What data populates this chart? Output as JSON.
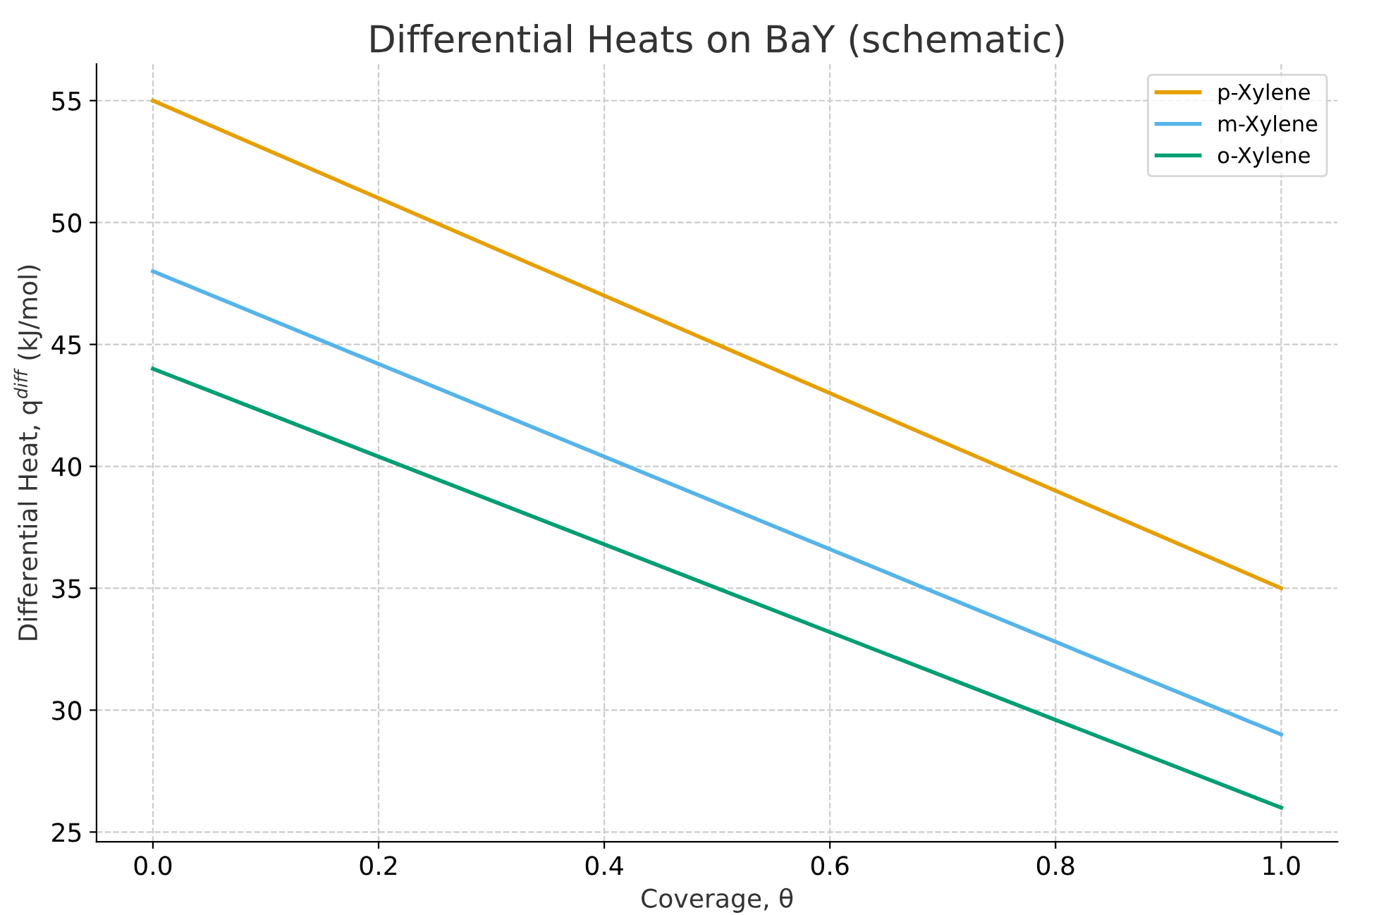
{
  "chart_data": {
    "type": "line",
    "title": "Differential Heats on BaY (schematic)",
    "xlabel": "Coverage, θ",
    "ylabel": "Differential Heat, q$^{diff}$ (kJ/mol)",
    "x": [
      0.0,
      1.0
    ],
    "series": [
      {
        "name": "p-Xylene",
        "color": "#e69f00",
        "values": [
          55,
          35
        ]
      },
      {
        "name": "m-Xylene",
        "color": "#56b4e9",
        "values": [
          48,
          29
        ]
      },
      {
        "name": "o-Xylene",
        "color": "#009e73",
        "values": [
          44,
          26
        ]
      }
    ],
    "xlim": [
      -0.05,
      1.05
    ],
    "xticks": [
      {
        "value": 0,
        "label": "0.0"
      },
      0.2,
      0.4,
      0.6,
      0.8,
      {
        "value": 1,
        "label": "1.0"
      }
    ],
    "ylim": [
      24.6,
      56.5
    ],
    "yticks": [
      25,
      30,
      35,
      40,
      45,
      50,
      55
    ],
    "grid": true,
    "legend": "top right",
    "line_style": "solid",
    "marker": "none"
  }
}
